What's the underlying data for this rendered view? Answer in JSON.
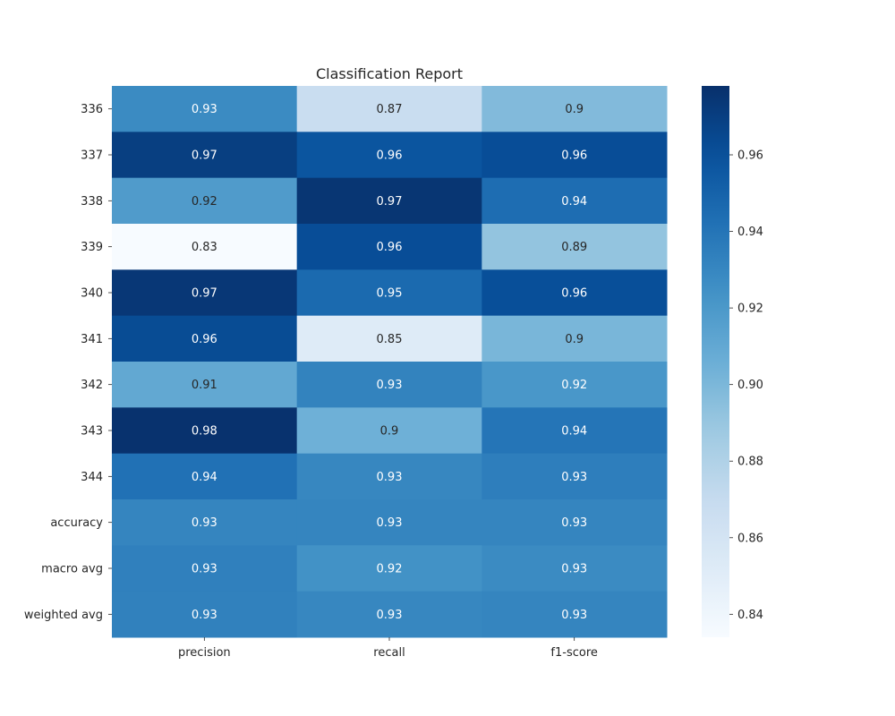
{
  "chart_data": {
    "type": "heatmap",
    "title": "Classification Report",
    "x_categories": [
      "precision",
      "recall",
      "f1-score"
    ],
    "y_categories": [
      "336",
      "337",
      "338",
      "339",
      "340",
      "341",
      "342",
      "343",
      "344",
      "accuracy",
      "macro avg",
      "weighted avg"
    ],
    "values": [
      [
        0.928,
        0.868,
        0.898
      ],
      [
        0.97,
        0.958,
        0.962
      ],
      [
        0.918,
        0.975,
        0.944
      ],
      [
        0.834,
        0.962,
        0.892
      ],
      [
        0.974,
        0.946,
        0.961
      ],
      [
        0.963,
        0.852,
        0.901
      ],
      [
        0.91,
        0.932,
        0.921
      ],
      [
        0.977,
        0.905,
        0.94
      ],
      [
        0.942,
        0.93,
        0.935
      ],
      [
        0.931,
        0.931,
        0.931
      ],
      [
        0.934,
        0.924,
        0.928
      ],
      [
        0.933,
        0.93,
        0.931
      ]
    ],
    "annotations": [
      [
        "0.93",
        "0.87",
        "0.9"
      ],
      [
        "0.97",
        "0.96",
        "0.96"
      ],
      [
        "0.92",
        "0.97",
        "0.94"
      ],
      [
        "0.83",
        "0.96",
        "0.89"
      ],
      [
        "0.97",
        "0.95",
        "0.96"
      ],
      [
        "0.96",
        "0.85",
        "0.9"
      ],
      [
        "0.91",
        "0.93",
        "0.92"
      ],
      [
        "0.98",
        "0.9",
        "0.94"
      ],
      [
        "0.94",
        "0.93",
        "0.93"
      ],
      [
        "0.93",
        "0.93",
        "0.93"
      ],
      [
        "0.93",
        "0.92",
        "0.93"
      ],
      [
        "0.93",
        "0.93",
        "0.93"
      ]
    ],
    "colormap": "Blues",
    "colorbar": {
      "range": [
        0.834,
        0.978
      ],
      "ticks": [
        0.84,
        0.86,
        0.88,
        0.9,
        0.92,
        0.94,
        0.96
      ],
      "tick_labels": [
        "0.84",
        "0.86",
        "0.88",
        "0.90",
        "0.92",
        "0.94",
        "0.96"
      ],
      "placement": "right"
    },
    "grid": false
  }
}
